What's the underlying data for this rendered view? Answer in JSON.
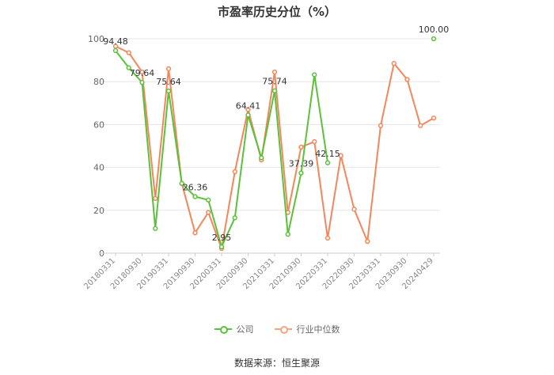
{
  "chart_data": {
    "type": "line",
    "title": "市盈率历史分位（%）",
    "ylim": [
      0,
      100
    ],
    "yticks": [
      0,
      20,
      40,
      60,
      80,
      100
    ],
    "grid": true,
    "legend_position": "bottom",
    "x": [
      "20180331",
      "20180630",
      "20180930",
      "20181231",
      "20190331",
      "20190630",
      "20190930",
      "20191231",
      "20200331",
      "20200630",
      "20200930",
      "20201231",
      "20210331",
      "20210630",
      "20210930",
      "20211231",
      "20220331",
      "20220630",
      "20220930",
      "20221231",
      "20230331",
      "20230630",
      "20230930",
      "20231231",
      "20240429"
    ],
    "xtick_labels": [
      "20180331",
      "20180930",
      "20190331",
      "20190930",
      "20200331",
      "20200930",
      "20210331",
      "20210930",
      "20220331",
      "20220930",
      "20230331",
      "20230930",
      "20240429"
    ],
    "series": [
      {
        "name": "公司",
        "color": "#5cc13a",
        "values": [
          94.48,
          86.5,
          79.64,
          11.5,
          75.64,
          32.5,
          26.36,
          24.8,
          2.95,
          16.5,
          64.41,
          44.5,
          75.74,
          8.8,
          37.39,
          83.2,
          42.15,
          null,
          null,
          null,
          null,
          null,
          null,
          null,
          100.0
        ],
        "data_labels": {
          "0": "94.48",
          "2": "79.64",
          "4": "75.64",
          "6": "26.36",
          "8": "2.95",
          "10": "64.41",
          "12": "75.74",
          "14": "37.39",
          "16": "42.15",
          "24": "100.00"
        }
      },
      {
        "name": "行业中位数",
        "color": "#f4865a",
        "values": [
          96.5,
          93.5,
          84.5,
          25.5,
          86.0,
          32.5,
          9.5,
          19.0,
          2.2,
          38.0,
          67.0,
          43.5,
          84.5,
          19.0,
          49.5,
          52.0,
          7.0,
          45.5,
          20.5,
          5.5,
          59.5,
          88.5,
          81.0,
          59.5,
          63.0
        ]
      }
    ]
  },
  "source_text": "数据来源：恒生聚源"
}
